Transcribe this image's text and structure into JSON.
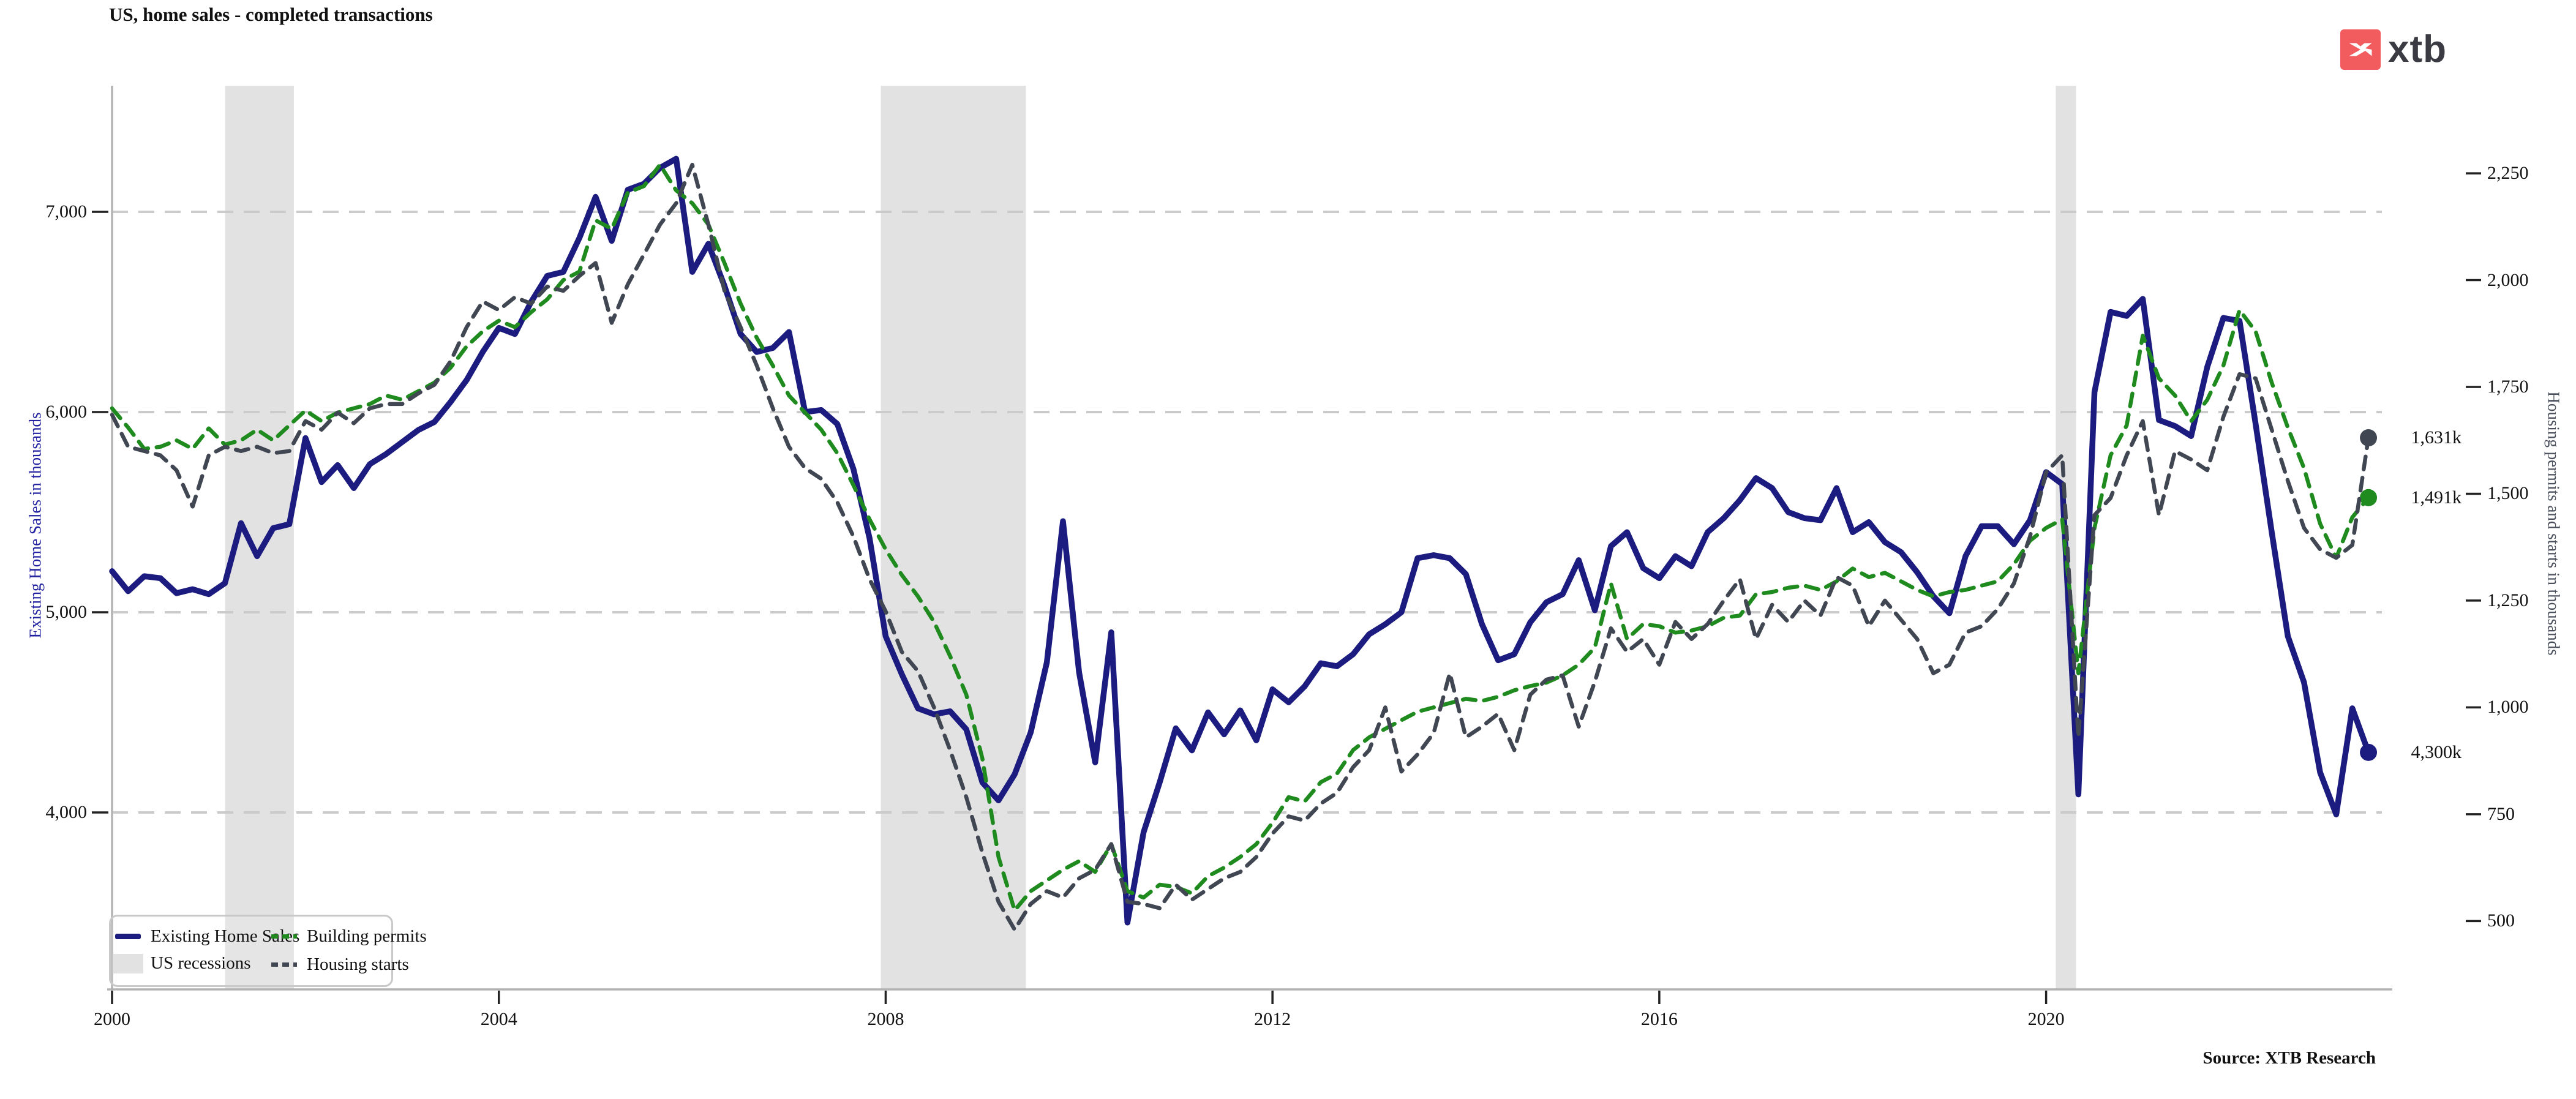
{
  "header": {
    "title": "US, home sales - completed transactions"
  },
  "logo": {
    "text": "xtb",
    "square_color": "#f25c5e",
    "x_color": "#ffffff",
    "text_color": "#3b3b44"
  },
  "source": {
    "label": "Source: XTB Research"
  },
  "legend": {
    "items": [
      {
        "label": "Existing Home Sales",
        "swatch": "line",
        "color": "#1c1c80"
      },
      {
        "label": "US recessions",
        "swatch": "rect",
        "color": "#e2e2e2"
      },
      {
        "label": "Building permits",
        "swatch": "dashes",
        "color": "#1f8b1f"
      },
      {
        "label": "Housing starts",
        "swatch": "dashes",
        "color": "#414752"
      }
    ]
  },
  "axes": {
    "left": {
      "title": "Existing Home Sales in thousands",
      "color": "#2222a0"
    },
    "right": {
      "title": "Housing permits and starts in thousands",
      "color": "#4a505c"
    }
  },
  "chart_data": {
    "type": "line",
    "title": "US, home sales - completed transactions",
    "grid": "horizontal dashed",
    "legend_position": "lower left",
    "colors": {
      "grid": "#cbcbcb",
      "spine": "#b3b3b3",
      "recession": "#e2e2e2",
      "tick": "#222222"
    },
    "x_axis": {
      "range": [
        2000,
        2023.58
      ],
      "ticks": [
        {
          "v": 2000,
          "label": "2000"
        },
        {
          "v": 2004,
          "label": "2004"
        },
        {
          "v": 2008,
          "label": "2008"
        },
        {
          "v": 2012,
          "label": "2012"
        },
        {
          "v": 2016,
          "label": "2016"
        },
        {
          "v": 2020,
          "label": "2020"
        }
      ]
    },
    "left_axis": {
      "range": [
        3116,
        7630
      ],
      "ticks": [
        {
          "v": 7000,
          "label": "7,000"
        },
        {
          "v": 6000,
          "label": "6,000"
        },
        {
          "v": 5000,
          "label": "5,000"
        },
        {
          "v": 4000,
          "label": "4,000"
        }
      ]
    },
    "right_axis": {
      "range": [
        340,
        2455
      ],
      "ticks": [
        {
          "v": 2250,
          "label": "2,250"
        },
        {
          "v": 2000,
          "label": "2,000"
        },
        {
          "v": 1750,
          "label": "1,750"
        },
        {
          "v": 1500,
          "label": "1,500"
        },
        {
          "v": 1250,
          "label": "1,250"
        },
        {
          "v": 1000,
          "label": "1,000"
        },
        {
          "v": 750,
          "label": "750"
        },
        {
          "v": 500,
          "label": "500"
        }
      ]
    },
    "recessions": [
      [
        2001.17,
        2001.88
      ],
      [
        2007.95,
        2009.45
      ],
      [
        2020.1,
        2020.31
      ]
    ],
    "x_start": 2000,
    "x_step": 0.1666667,
    "series": [
      {
        "name": "Existing Home Sales",
        "axis": "left",
        "color": "#1c1c80",
        "style": "solid",
        "width": 9.5,
        "end_label": "4,300k",
        "values": [
          5205,
          5105,
          5180,
          5170,
          5095,
          5115,
          5090,
          5145,
          5445,
          5280,
          5420,
          5440,
          5870,
          5650,
          5735,
          5620,
          5740,
          5790,
          5850,
          5910,
          5950,
          6050,
          6160,
          6300,
          6420,
          6390,
          6550,
          6680,
          6700,
          6870,
          7075,
          6855,
          7110,
          7140,
          7220,
          7265,
          6700,
          6840,
          6630,
          6390,
          6300,
          6320,
          6400,
          6000,
          6010,
          5940,
          5715,
          5370,
          4880,
          4690,
          4520,
          4490,
          4505,
          4415,
          4150,
          4060,
          4190,
          4400,
          4750,
          5455,
          4700,
          4250,
          4900,
          3450,
          3900,
          4150,
          4420,
          4310,
          4500,
          4390,
          4510,
          4360,
          4615,
          4550,
          4630,
          4745,
          4730,
          4790,
          4890,
          4940,
          5000,
          5270,
          5285,
          5270,
          5190,
          4940,
          4760,
          4790,
          4950,
          5050,
          5090,
          5260,
          5010,
          5330,
          5400,
          5220,
          5170,
          5280,
          5230,
          5400,
          5470,
          5560,
          5670,
          5620,
          5500,
          5470,
          5460,
          5620,
          5400,
          5450,
          5350,
          5300,
          5200,
          5080,
          4995,
          5280,
          5430,
          5430,
          5340,
          5460,
          5700,
          5640,
          4090,
          6100,
          6500,
          6480,
          6565,
          5960,
          5930,
          5880,
          6225,
          6470,
          6455,
          5940,
          5400,
          4880,
          4650,
          4200,
          3990,
          4520,
          4300
        ]
      },
      {
        "name": "Building permits",
        "axis": "right",
        "color": "#1f8b1f",
        "style": "dashed",
        "width": 6.5,
        "end_label": "1,491k",
        "values": [
          1700,
          1655,
          1605,
          1610,
          1625,
          1605,
          1653,
          1615,
          1625,
          1650,
          1625,
          1660,
          1695,
          1670,
          1690,
          1700,
          1710,
          1730,
          1720,
          1740,
          1760,
          1795,
          1845,
          1880,
          1905,
          1890,
          1925,
          1955,
          2000,
          2020,
          2140,
          2120,
          2205,
          2220,
          2270,
          2210,
          2180,
          2130,
          2040,
          1945,
          1865,
          1800,
          1730,
          1690,
          1650,
          1595,
          1520,
          1440,
          1370,
          1310,
          1260,
          1200,
          1120,
          1030,
          880,
          650,
          525,
          570,
          595,
          620,
          640,
          615,
          680,
          570,
          555,
          585,
          580,
          565,
          605,
          625,
          650,
          680,
          730,
          790,
          780,
          825,
          845,
          900,
          930,
          950,
          970,
          990,
          1000,
          1010,
          1020,
          1015,
          1025,
          1040,
          1050,
          1058,
          1075,
          1100,
          1140,
          1290,
          1160,
          1195,
          1190,
          1175,
          1180,
          1190,
          1210,
          1215,
          1265,
          1270,
          1280,
          1285,
          1275,
          1295,
          1325,
          1305,
          1315,
          1295,
          1275,
          1260,
          1270,
          1275,
          1285,
          1295,
          1335,
          1390,
          1420,
          1440,
          1080,
          1420,
          1590,
          1660,
          1870,
          1770,
          1730,
          1670,
          1720,
          1800,
          1930,
          1880,
          1760,
          1655,
          1560,
          1430,
          1350,
          1445,
          1491
        ]
      },
      {
        "name": "Housing starts",
        "axis": "right",
        "color": "#414752",
        "style": "dashed",
        "width": 6.5,
        "end_label": "1,631k",
        "values": [
          1685,
          1610,
          1600,
          1590,
          1555,
          1470,
          1590,
          1610,
          1600,
          1610,
          1595,
          1600,
          1670,
          1650,
          1690,
          1665,
          1700,
          1710,
          1710,
          1735,
          1755,
          1810,
          1890,
          1950,
          1930,
          1960,
          1945,
          1985,
          1975,
          2010,
          2040,
          1900,
          1990,
          2060,
          2130,
          2180,
          2270,
          2130,
          1975,
          1890,
          1800,
          1700,
          1610,
          1560,
          1535,
          1480,
          1400,
          1300,
          1225,
          1130,
          1085,
          1000,
          900,
          790,
          660,
          545,
          480,
          540,
          570,
          555,
          600,
          620,
          680,
          545,
          540,
          530,
          585,
          550,
          575,
          600,
          615,
          650,
          705,
          745,
          735,
          775,
          800,
          860,
          900,
          1000,
          850,
          890,
          940,
          1080,
          930,
          955,
          985,
          900,
          1030,
          1065,
          1075,
          955,
          1060,
          1185,
          1130,
          1160,
          1100,
          1200,
          1160,
          1195,
          1250,
          1300,
          1160,
          1240,
          1200,
          1250,
          1215,
          1305,
          1285,
          1190,
          1250,
          1205,
          1160,
          1080,
          1100,
          1175,
          1190,
          1230,
          1290,
          1400,
          1550,
          1590,
          930,
          1450,
          1490,
          1590,
          1670,
          1450,
          1600,
          1580,
          1555,
          1680,
          1780,
          1770,
          1650,
          1530,
          1420,
          1370,
          1350,
          1380,
          1631
        ]
      }
    ]
  }
}
